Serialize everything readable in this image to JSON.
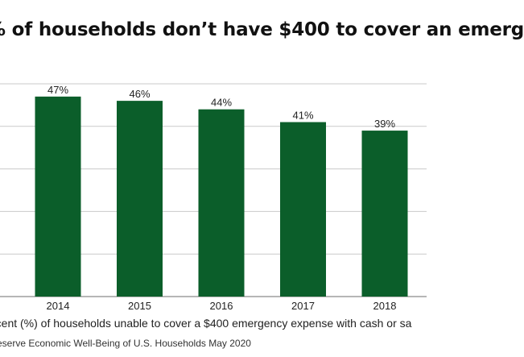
{
  "chart_data": {
    "type": "bar",
    "title": "% of households don’t have $400 to cover an emerg",
    "categories": [
      "2014",
      "2015",
      "2016",
      "2017",
      "2018"
    ],
    "values": [
      47,
      46,
      44,
      41,
      39
    ],
    "value_labels": [
      "47%",
      "46%",
      "44%",
      "41%",
      "39%"
    ],
    "xlabel": "rcent (%) of households unable to cover a $400 emergency expense with cash or sa",
    "ylabel": "",
    "ylim": [
      0,
      50
    ],
    "grid": true,
    "legend": "none",
    "source": "eserve Economic Well-Being of U.S. Households May 2020"
  },
  "colors": {
    "bar": "#0b5e2a",
    "grid": "#c9c9c9",
    "axis": "#8a8a8a"
  }
}
